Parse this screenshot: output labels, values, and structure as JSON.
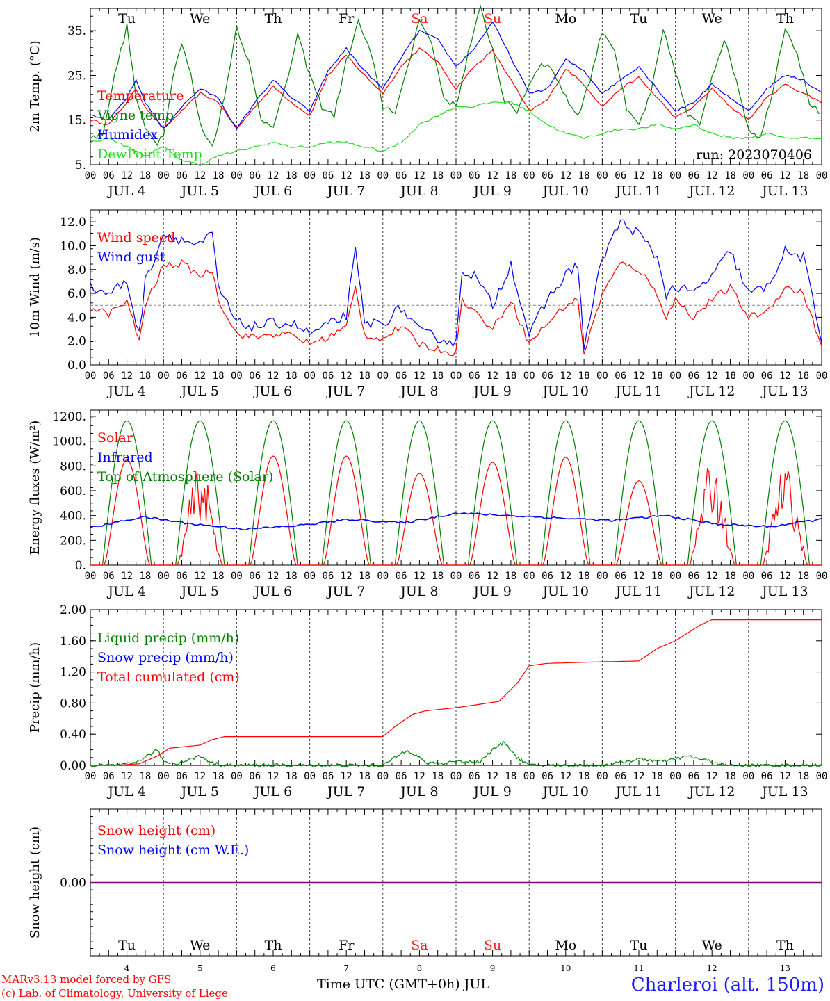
{
  "colors": {
    "red": "#ff0000",
    "green": "#008000",
    "blue": "#0000ff",
    "lightgreen": "#22dd22",
    "weekend": "#ff2222",
    "grid": "#444444",
    "purple": "#7f007f"
  },
  "day_labels": [
    "Tu",
    "We",
    "Th",
    "Fr",
    "Sa",
    "Su",
    "Mo",
    "Tu",
    "We",
    "Th"
  ],
  "weekend_days": [
    "Sa",
    "Su"
  ],
  "date_labels": [
    "JUL  4",
    "JUL  5",
    "JUL  6",
    "JUL  7",
    "JUL  8",
    "JUL  9",
    "JUL 10",
    "JUL 11",
    "JUL 12",
    "JUL 13"
  ],
  "hour_labels": [
    "00",
    "06",
    "12",
    "18"
  ],
  "bottom_day_numbers": [
    "4",
    "5",
    "6",
    "7",
    "8",
    "9",
    "10",
    "11",
    "12",
    "13"
  ],
  "footer": {
    "credit_line1": "MARv3.13 model forced by GFS",
    "credit_line2": "(c) Lab. of Climatology, University of Liege",
    "xlabel": "Time UTC (GMT+0h) JUL",
    "station": "Charleroi (alt. 150m)"
  },
  "chart_data": [
    {
      "type": "line",
      "ylabel": "2m Temp. (°C)",
      "ylim": [
        5,
        40
      ],
      "ytick_values": [
        5,
        15,
        25,
        35
      ],
      "ytick_labels": [
        "5.",
        "15.",
        "25.",
        "35."
      ],
      "annotation": "run: 2023070406",
      "x_unit": "hours since JUL 4 00 UTC",
      "series": [
        {
          "name": "Temperature",
          "color": "#ff0000",
          "x": [
            0,
            6,
            12,
            15,
            18,
            24,
            30,
            36,
            42,
            48,
            54,
            60,
            66,
            72,
            78,
            84,
            90,
            96,
            102,
            108,
            114,
            120,
            126,
            132,
            138,
            144,
            150,
            156,
            162,
            168,
            174,
            180,
            186,
            192,
            198,
            204,
            210,
            216,
            222,
            228,
            234,
            240
          ],
          "y": [
            15,
            14,
            19,
            22,
            18,
            13,
            17,
            21,
            19,
            13,
            18,
            22.5,
            19,
            16,
            25,
            29.5,
            25,
            21,
            27,
            31,
            28,
            22,
            27,
            30.5,
            24,
            17,
            19.5,
            26.5,
            23,
            18,
            22,
            24.5,
            20,
            15.5,
            18,
            22,
            18,
            15,
            20,
            23,
            21,
            19
          ]
        },
        {
          "name": "Vigne temp",
          "color": "#008000",
          "x": [
            0,
            4,
            8,
            12,
            15,
            18,
            22,
            24,
            26,
            28,
            30,
            33,
            36,
            40,
            44,
            48,
            52,
            56,
            60,
            64,
            68,
            72,
            76,
            80,
            84,
            88,
            92,
            96,
            100,
            104,
            108,
            112,
            116,
            120,
            124,
            128,
            132,
            136,
            140,
            144,
            148,
            152,
            156,
            160,
            164,
            168,
            172,
            176,
            180,
            184,
            188,
            192,
            196,
            200,
            204,
            208,
            212,
            216,
            220,
            224,
            228,
            232,
            236,
            240
          ],
          "y": [
            11,
            12,
            25,
            36,
            20,
            13,
            10,
            12,
            20,
            28,
            32,
            25,
            14,
            9,
            20,
            36,
            28,
            15,
            14,
            22,
            34,
            25,
            18,
            16,
            28,
            37,
            30,
            18,
            17,
            26,
            38,
            32,
            20,
            18,
            30,
            40,
            31,
            19,
            17,
            23,
            28,
            26,
            20,
            16,
            24,
            35,
            31,
            17,
            14,
            21,
            35,
            26,
            16,
            14,
            25,
            33,
            24,
            13,
            11,
            22,
            36,
            30,
            19,
            16
          ]
        },
        {
          "name": "Humidex",
          "color": "#0000ff",
          "x": [
            0,
            6,
            12,
            15,
            18,
            24,
            30,
            36,
            42,
            48,
            54,
            60,
            66,
            72,
            78,
            84,
            90,
            96,
            102,
            108,
            114,
            120,
            126,
            132,
            138,
            144,
            150,
            156,
            162,
            168,
            174,
            180,
            186,
            192,
            198,
            204,
            210,
            216,
            222,
            228,
            234,
            240
          ],
          "y": [
            16,
            15,
            20,
            24,
            19,
            13,
            18,
            22,
            20,
            13,
            19,
            24,
            20,
            17,
            26,
            31,
            26,
            22,
            29,
            35,
            33,
            27,
            31,
            37,
            29,
            21,
            22,
            28.5,
            26,
            21,
            24,
            27,
            22,
            17,
            19,
            23,
            20,
            17,
            22,
            25,
            24,
            21
          ]
        },
        {
          "name": "DewPoint Temp",
          "color": "#22dd22",
          "x": [
            0,
            6,
            12,
            18,
            24,
            30,
            36,
            42,
            48,
            54,
            60,
            66,
            72,
            78,
            84,
            90,
            96,
            102,
            108,
            114,
            120,
            126,
            132,
            138,
            144,
            150,
            156,
            162,
            168,
            174,
            180,
            186,
            192,
            198,
            204,
            210,
            216,
            222,
            228,
            234,
            240
          ],
          "y": [
            10,
            11,
            9,
            7,
            9,
            6,
            5,
            7,
            8,
            9,
            10,
            9,
            9,
            10,
            10,
            9,
            8,
            10,
            14,
            16,
            18,
            18,
            19,
            19,
            17,
            14,
            12,
            11,
            12,
            13,
            13,
            14,
            13,
            14,
            12,
            11,
            11,
            12,
            11,
            11,
            11
          ]
        }
      ]
    },
    {
      "type": "line",
      "ylabel": "10m Wind (m/s)",
      "ylim": [
        0,
        13
      ],
      "ytick_values": [
        0,
        2,
        4,
        6,
        8,
        10,
        12
      ],
      "ytick_labels": [
        "0.0",
        "2.0",
        "4.0",
        "6.0",
        "8.0",
        "10.0",
        "12.0"
      ],
      "reference_line": 5,
      "x_unit": "hours since JUL 4 00 UTC",
      "series": [
        {
          "name": "Wind speed",
          "color": "#ff0000",
          "x": [
            0,
            6,
            12,
            16,
            18,
            24,
            30,
            36,
            40,
            42,
            48,
            54,
            60,
            66,
            72,
            78,
            84,
            87,
            90,
            96,
            102,
            108,
            114,
            120,
            122,
            126,
            132,
            138,
            144,
            150,
            156,
            160,
            162,
            168,
            174,
            180,
            186,
            189,
            192,
            198,
            204,
            210,
            216,
            222,
            228,
            234,
            240
          ],
          "y": [
            4.8,
            4.3,
            5.3,
            2.0,
            5.0,
            8.3,
            8.5,
            7.5,
            8.0,
            5.5,
            2.6,
            2.3,
            2.6,
            2.5,
            1.8,
            2.3,
            3.2,
            6.5,
            2.5,
            2.2,
            3.2,
            1.8,
            1.3,
            1.0,
            5.5,
            4.5,
            3.0,
            5.5,
            1.8,
            3.5,
            5.0,
            5.5,
            1.0,
            6.0,
            8.5,
            8.0,
            6.0,
            4.0,
            5.5,
            4.0,
            5.5,
            6.5,
            4.0,
            4.5,
            6.5,
            6.0,
            1.5
          ]
        },
        {
          "name": "Wind gust",
          "color": "#0000ff",
          "x": [
            0,
            6,
            12,
            16,
            18,
            24,
            30,
            36,
            40,
            42,
            48,
            54,
            60,
            66,
            72,
            78,
            84,
            87,
            90,
            96,
            102,
            108,
            114,
            120,
            122,
            126,
            132,
            138,
            144,
            150,
            156,
            160,
            162,
            168,
            174,
            180,
            186,
            189,
            192,
            198,
            204,
            210,
            216,
            222,
            228,
            234,
            240
          ],
          "y": [
            6.5,
            6.0,
            7.0,
            2.5,
            7.0,
            11.0,
            10.5,
            10.0,
            11.0,
            6.5,
            3.5,
            3.2,
            3.5,
            3.5,
            2.6,
            3.3,
            4.2,
            9.5,
            3.5,
            3.5,
            4.8,
            2.8,
            2.3,
            1.8,
            8.0,
            7.5,
            5.0,
            8.5,
            2.5,
            5.5,
            7.5,
            8.5,
            1.5,
            9.0,
            12.0,
            11.0,
            9.0,
            6.0,
            6.5,
            6.0,
            7.5,
            9.5,
            6.0,
            6.5,
            9.5,
            9.0,
            2.0
          ]
        }
      ]
    },
    {
      "type": "line",
      "ylabel": "Energy fluxes (W/m²)",
      "ylim": [
        0,
        1250
      ],
      "ytick_values": [
        0,
        200,
        400,
        600,
        800,
        1000,
        1200
      ],
      "ytick_labels": [
        "0.",
        "200.",
        "400.",
        "600.",
        "800.",
        "1000.",
        "1200."
      ],
      "x_unit": "hours since JUL 4 00 UTC",
      "solar_day_peaks": [
        850,
        800,
        880,
        880,
        740,
        830,
        870,
        680,
        840,
        810
      ],
      "infrared_daily": [
        300,
        390,
        330,
        290,
        320,
        370,
        340,
        420,
        400,
        380,
        360,
        400,
        330,
        310,
        370
      ],
      "series": [
        {
          "name": "Solar",
          "color": "#ff0000"
        },
        {
          "name": "Infrared",
          "color": "#0000ff"
        },
        {
          "name": "Top of Atmosphere (Solar)",
          "color": "#008000",
          "daily_peak": 1165
        }
      ]
    },
    {
      "type": "line",
      "ylabel": "Precip (mm/h)",
      "ylim": [
        0,
        2
      ],
      "ytick_values": [
        0,
        0.4,
        0.8,
        1.2,
        1.6,
        2.0
      ],
      "ytick_labels": [
        "0.00",
        "0.40",
        "0.80",
        "1.20",
        "1.60",
        "2.00"
      ],
      "x_unit": "hours since JUL 4 00 UTC",
      "series": [
        {
          "name": "Liquid precip (mm/h)",
          "color": "#008000",
          "x": [
            0,
            8,
            14,
            20,
            22,
            24,
            28,
            36,
            40,
            44,
            96,
            100,
            104,
            108,
            110,
            116,
            118,
            128,
            132,
            136,
            140,
            144,
            148,
            168,
            176,
            180,
            188,
            192,
            196,
            200,
            204,
            208,
            240
          ],
          "y": [
            0,
            0,
            0.02,
            0.15,
            0.2,
            0.05,
            0.02,
            0.12,
            0.03,
            0,
            0,
            0.1,
            0.2,
            0.1,
            0.03,
            0.02,
            0.05,
            0.05,
            0.2,
            0.3,
            0.1,
            0,
            0,
            0,
            0.05,
            0.08,
            0.05,
            0.08,
            0.12,
            0.08,
            0.05,
            0,
            0
          ]
        },
        {
          "name": "Snow precip (mm/h)",
          "color": "#0000ff",
          "x": [
            0,
            240
          ],
          "y": [
            0,
            0
          ]
        },
        {
          "name": "Total cumulated (cm)",
          "color": "#ff0000",
          "x": [
            0,
            8,
            16,
            22,
            26,
            36,
            40,
            44,
            48,
            96,
            100,
            106,
            110,
            120,
            134,
            140,
            144,
            150,
            168,
            180,
            186,
            192,
            200,
            204,
            240
          ],
          "y": [
            0,
            0,
            0.02,
            0.12,
            0.22,
            0.26,
            0.33,
            0.37,
            0.37,
            0.37,
            0.5,
            0.66,
            0.7,
            0.74,
            0.82,
            1.05,
            1.28,
            1.31,
            1.33,
            1.34,
            1.5,
            1.6,
            1.8,
            1.87,
            1.87
          ]
        }
      ]
    },
    {
      "type": "line",
      "ylabel": "Snow height (cm)",
      "ylim": [
        -1,
        1
      ],
      "ytick_values": [
        0
      ],
      "ytick_labels": [
        "0.00"
      ],
      "x_unit": "hours since JUL 4 00 UTC",
      "series": [
        {
          "name": "Snow height (cm)",
          "color": "#ff0000",
          "x": [
            0,
            240
          ],
          "y": [
            0,
            0
          ]
        },
        {
          "name": "Snow height (cm W.E.)",
          "color": "#0000ff",
          "x": [
            0,
            240
          ],
          "y": [
            0,
            0
          ]
        }
      ]
    }
  ]
}
